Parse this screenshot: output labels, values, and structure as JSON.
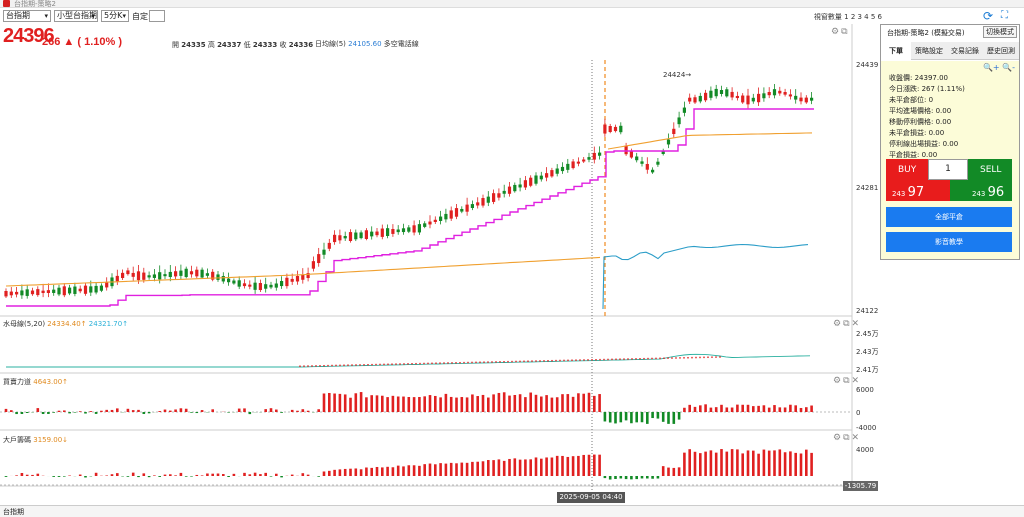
{
  "window": {
    "title": "台指期-策略2"
  },
  "toolbar": {
    "product": "台指期",
    "contract": "小型台指期",
    "interval": "5分K",
    "custom_label": "自定:",
    "display_count_label": "視窗數量",
    "display_counts": "1 2 3 4 5 6"
  },
  "quote": {
    "last": "24396",
    "change": "266 ▲ ( 1.10% )",
    "open_label": "開",
    "open": "24335",
    "high_label": "高",
    "high": "24337",
    "low_label": "低",
    "low": "24333",
    "close_label": "收",
    "close": "24336",
    "ma_label": "日均線(5)",
    "ma_value": "24105.60",
    "ma_suffix": "多空電話線"
  },
  "indicators": {
    "water": {
      "label": "水母線(5,20)",
      "v1": "24334.40↑",
      "v2": "24321.70↑"
    },
    "power": {
      "label": "買賣力道",
      "v1": "4643.00↑"
    },
    "big": {
      "label": "大戶籌碼",
      "v1": "3159.00↓"
    }
  },
  "axes": {
    "main_ticks": [
      "24439",
      "24281",
      "24122"
    ],
    "water_ticks": [
      "2.45万",
      "2.43万",
      "2.41万"
    ],
    "power_ticks": [
      "6000",
      "0",
      "-4000"
    ],
    "big_ticks": [
      "4000"
    ],
    "peak_label": "24424→",
    "cursor_date": "2025-09-05  04:40",
    "cursor_value": "-1305.79"
  },
  "panel": {
    "title": "台指期-策略2 (模擬交易)",
    "mode_button": "切換模式",
    "tabs": [
      "下單",
      "策略設定",
      "交易記錄",
      "歷史回測"
    ],
    "zoom": "🔍+ 🔍-",
    "lines": [
      "收盤價: 24397.00",
      "今日漲跌: 267 (1.11%)",
      "未平倉部位: 0",
      "平均進場價格: 0.00",
      "移動停利價格: 0.00",
      "未平倉損益: 0.00",
      "停利線出場損益: 0.00",
      "平倉損益: 0.00"
    ],
    "buy_label": "BUY",
    "sell_label": "SELL",
    "qty": "1",
    "buy_prefix": "243",
    "buy_big": "97",
    "sell_prefix": "243",
    "sell_big": "96",
    "close_all": "全部平倉",
    "video": "影音教學"
  },
  "status": {
    "tab": "台指期"
  },
  "colors": {
    "up": "#e02020",
    "down": "#128a26",
    "stop_line": "#e020e0",
    "ma_line": "#f0a030",
    "flow_line": "#2b9dc8",
    "button_blue": "#1a7bf0"
  },
  "chart_data": [
    {
      "type": "candlestick",
      "title": "",
      "ylim": [
        24100,
        24460
      ],
      "yticks": [
        24439,
        24281,
        24122
      ],
      "overlays": [
        "stop-line (magenta)",
        "moving-average (orange)",
        "money-flow (blue)"
      ]
    },
    {
      "type": "line",
      "title": "水母線(5,20)",
      "ylim": [
        24100,
        24500
      ],
      "yticks": [
        "2.45万",
        "2.43万",
        "2.41万"
      ]
    },
    {
      "type": "bar",
      "title": "買賣力道",
      "ylim": [
        -5000,
        7000
      ],
      "yticks": [
        6000,
        0,
        -4000
      ]
    },
    {
      "type": "bar",
      "title": "大戶籌碼",
      "ylim": [
        -2000,
        5000
      ],
      "yticks": [
        4000
      ]
    }
  ]
}
